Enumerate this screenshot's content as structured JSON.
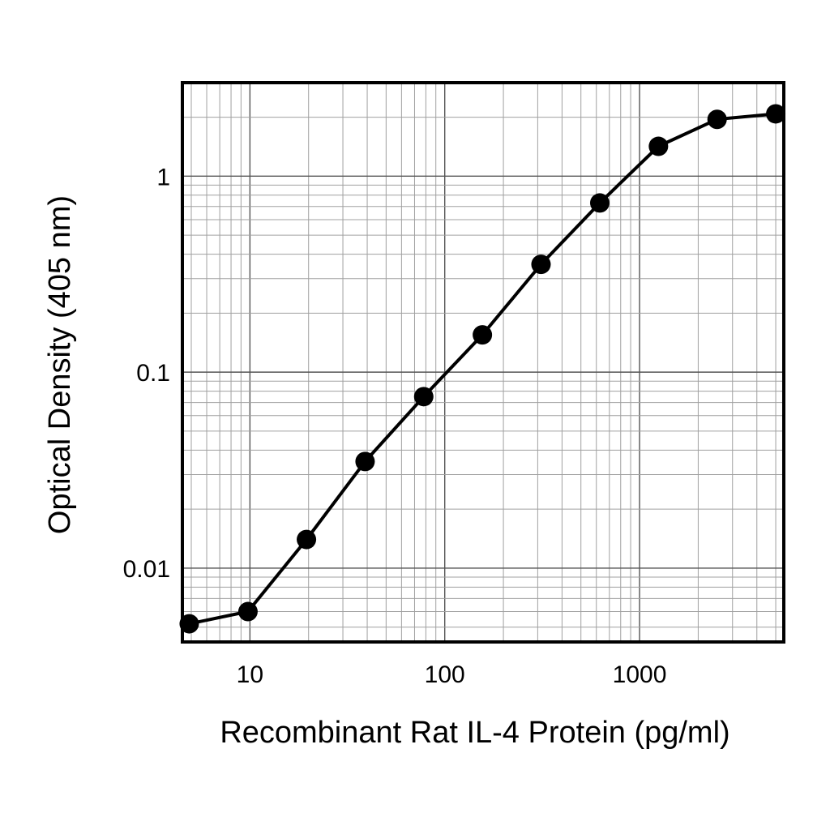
{
  "chart_data": {
    "type": "line",
    "xlabel": "Recombinant Rat IL-4 Protein (pg/ml)",
    "ylabel": "Optical Density (405 nm)",
    "xscale": "log",
    "yscale": "log",
    "xlim": [
      4.5,
      5500
    ],
    "ylim": [
      0.0042,
      3
    ],
    "x_ticks": [
      {
        "value": 10,
        "label": "10"
      },
      {
        "value": 100,
        "label": "100"
      },
      {
        "value": 1000,
        "label": "1000"
      }
    ],
    "y_ticks": [
      {
        "value": 0.01,
        "label": "0.01"
      },
      {
        "value": 0.1,
        "label": "0.1"
      },
      {
        "value": 1,
        "label": "1"
      }
    ],
    "grid": true,
    "series": [
      {
        "x": [
          4.88,
          9.77,
          19.5,
          39,
          78,
          156,
          312,
          625,
          1250,
          2500,
          5000
        ],
        "y": [
          0.0052,
          0.006,
          0.014,
          0.035,
          0.075,
          0.155,
          0.355,
          0.73,
          1.42,
          1.95,
          2.08
        ]
      }
    ],
    "colors": {
      "line": "#000000",
      "marker": "#000000",
      "grid": "#a0a0a0",
      "frame": "#000000"
    }
  }
}
